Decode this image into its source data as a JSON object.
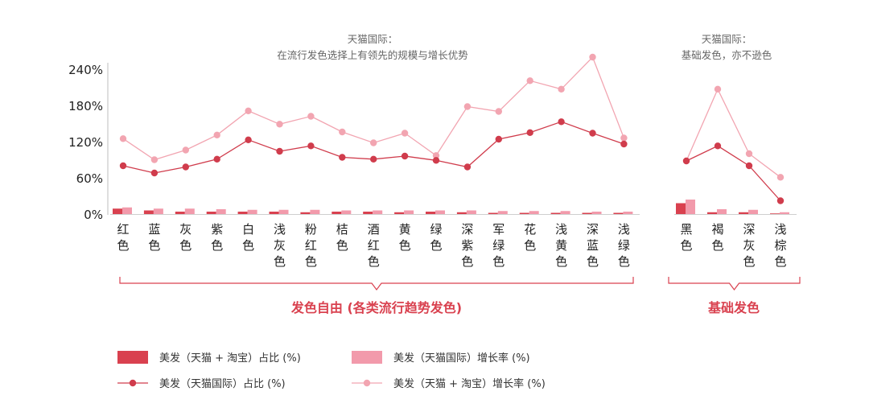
{
  "chart_data": {
    "type": "bar+line",
    "y_tick_labels": [
      "240%",
      "180%",
      "120%",
      "60%",
      "0%"
    ],
    "ylim": [
      0,
      240
    ],
    "groups": [
      {
        "annotation": [
          "天猫国际：",
          "在流行发色选择上有领先的规模与增长优势"
        ],
        "bracket_label": "发色自由 (各类流行趋势发色)",
        "categories": [
          "红色",
          "蓝色",
          "灰色",
          "紫色",
          "白色",
          "浅灰色",
          "粉红色",
          "桔色",
          "酒红色",
          "黄色",
          "绿色",
          "深紫色",
          "军绿色",
          "花色",
          "浅黄色",
          "深蓝色",
          "浅绿色"
        ],
        "series": {
          "share_taobao_tmall": [
            9,
            6,
            4,
            4,
            4,
            4,
            3,
            4,
            4,
            3,
            4,
            3,
            2,
            2,
            2,
            2,
            2
          ],
          "growth_tmall_intl": [
            11,
            9,
            9,
            8,
            7,
            7,
            7,
            6,
            6,
            6,
            6,
            6,
            5,
            5,
            5,
            4,
            4
          ],
          "share_tmall_intl": [
            80,
            68,
            78,
            91,
            123,
            104,
            113,
            94,
            91,
            96,
            89,
            78,
            124,
            135,
            153,
            134,
            116
          ],
          "growth_taobao_tmall": [
            125,
            90,
            106,
            131,
            171,
            149,
            162,
            136,
            118,
            134,
            97,
            178,
            170,
            221,
            207,
            260,
            126
          ]
        }
      },
      {
        "annotation": [
          "天猫国际：",
          "基础发色，亦不逊色"
        ],
        "bracket_label": "基础发色",
        "categories": [
          "黑色",
          "褐色",
          "深灰色",
          "浅棕色"
        ],
        "series": {
          "share_taobao_tmall": [
            18,
            3,
            3,
            1
          ],
          "growth_tmall_intl": [
            24,
            8,
            7,
            3
          ],
          "share_tmall_intl": [
            88,
            113,
            80,
            22
          ],
          "growth_taobao_tmall": [
            88,
            207,
            100,
            61
          ]
        }
      }
    ],
    "legend": [
      {
        "key": "share_taobao_tmall",
        "label": "美发（天猫 + 淘宝）占比 (%)",
        "kind": "bar",
        "color": "#d9414f"
      },
      {
        "key": "growth_tmall_intl",
        "label": "美发（天猫国际）增长率 (%)",
        "kind": "bar",
        "color": "#f29aab"
      },
      {
        "key": "share_tmall_intl",
        "label": "美发（天猫国际）占比 (%)",
        "kind": "line",
        "color": "#d03c4c"
      },
      {
        "key": "growth_taobao_tmall",
        "label": "美发（天猫 + 淘宝）增长率 (%)",
        "kind": "line",
        "color": "#f2a5b1"
      }
    ],
    "colors": {
      "accent": "#d9414f",
      "axis": "#bdbdbd",
      "text": "#222222",
      "muted": "#666666"
    }
  }
}
